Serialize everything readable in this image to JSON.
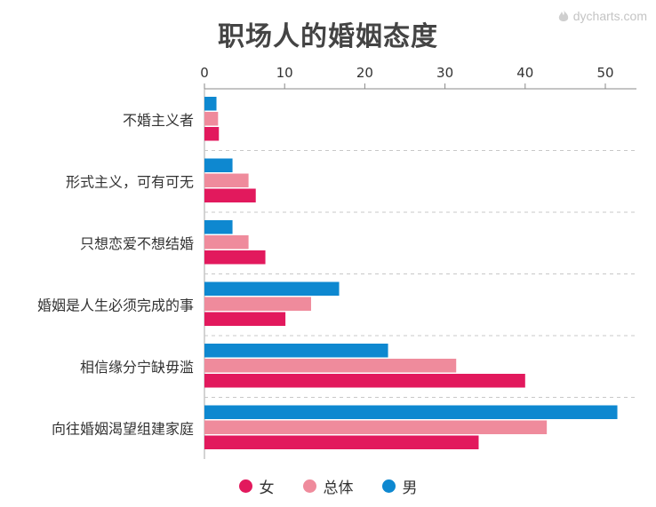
{
  "watermark": "dycharts.com",
  "chart_data": {
    "type": "bar",
    "orientation": "horizontal",
    "title": "职场人的婚姻态度",
    "categories": [
      "不婚主义者",
      "形式主义，可有可无",
      "只想恋爱不想结婚",
      "婚姻是人生必须完成的事",
      "相信缘分宁缺毋滥",
      "向往婚姻渴望组建家庭"
    ],
    "series": [
      {
        "name": "男",
        "color": "#0e88d0",
        "values": [
          1.5,
          3.5,
          3.5,
          16.8,
          22.9,
          51.5
        ]
      },
      {
        "name": "总体",
        "color": "#ef8b9c",
        "values": [
          1.7,
          5.5,
          5.5,
          13.3,
          31.4,
          42.7
        ]
      },
      {
        "name": "女",
        "color": "#e2195d",
        "values": [
          1.8,
          6.4,
          7.6,
          10.1,
          40.0,
          34.2
        ]
      }
    ],
    "xlim": [
      0,
      54
    ],
    "xticks": [
      0,
      10,
      20,
      30,
      40,
      50
    ],
    "axis_position": "top",
    "grid": false,
    "separators": "dashed",
    "legend": {
      "placement": "bottom",
      "items": [
        {
          "label": "女",
          "color": "#e2195d"
        },
        {
          "label": "总体",
          "color": "#ef8b9c"
        },
        {
          "label": "男",
          "color": "#0e88d0"
        }
      ]
    }
  }
}
